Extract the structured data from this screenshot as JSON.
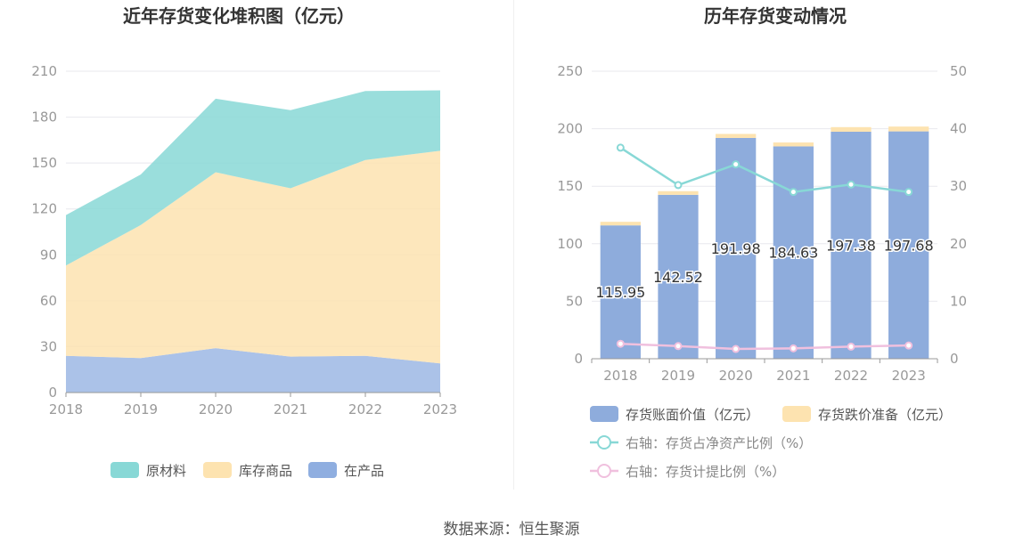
{
  "footer": {
    "source": "数据来源：恒生聚源"
  },
  "chart_data": [
    {
      "type": "area",
      "stacked": true,
      "title": "近年存货变化堆积图（亿元）",
      "categories": [
        "2018",
        "2019",
        "2020",
        "2021",
        "2022",
        "2023"
      ],
      "series": [
        {
          "name": "在产品",
          "values": [
            24,
            22.5,
            29,
            23.5,
            24,
            19
          ],
          "color": "#8faee0"
        },
        {
          "name": "库存商品",
          "values": [
            59,
            87,
            115,
            110,
            128,
            139
          ],
          "color": "#fde3b0"
        },
        {
          "name": "原材料",
          "values": [
            33,
            33,
            48,
            51,
            45,
            39.5
          ],
          "color": "#88d8d6"
        }
      ],
      "y_ticks": [
        "0",
        "30",
        "60",
        "90",
        "120",
        "150",
        "180",
        "210"
      ],
      "ylim": [
        0,
        210
      ],
      "grid": true,
      "legend": "bottom-center"
    },
    {
      "type": "bar",
      "stacked": true,
      "title": "历年存货变动情况",
      "categories": [
        "2018",
        "2019",
        "2020",
        "2021",
        "2022",
        "2023"
      ],
      "series": [
        {
          "name": "存货账面价值（亿元）",
          "values": [
            115.95,
            142.52,
            191.98,
            184.63,
            197.38,
            197.68
          ],
          "labels": [
            "115.95",
            "142.52",
            "191.98",
            "184.63",
            "197.38",
            "197.68"
          ],
          "color": "#8eacdc"
        },
        {
          "name": "存货跌价准备（亿元）",
          "values": [
            3.1,
            3.2,
            3.5,
            3.4,
            4.0,
            4.2
          ],
          "color": "#fde3b0"
        }
      ],
      "line_series": [
        {
          "name": "右轴：存货占净资产比例（%）",
          "values": [
            36.7,
            30.2,
            33.8,
            29.0,
            30.3,
            29.0
          ],
          "color": "#88d8d6"
        },
        {
          "name": "右轴：存货计提比例（%）",
          "values": [
            2.6,
            2.2,
            1.7,
            1.8,
            2.1,
            2.3
          ],
          "color": "#f0c0de"
        }
      ],
      "y_ticks": [
        "0",
        "50",
        "100",
        "150",
        "200",
        "250"
      ],
      "ylim": [
        0,
        250
      ],
      "y2_ticks": [
        "0",
        "10",
        "20",
        "30",
        "40",
        "50"
      ],
      "y2lim": [
        0,
        50
      ],
      "grid": true,
      "legend": "bottom-center"
    }
  ]
}
